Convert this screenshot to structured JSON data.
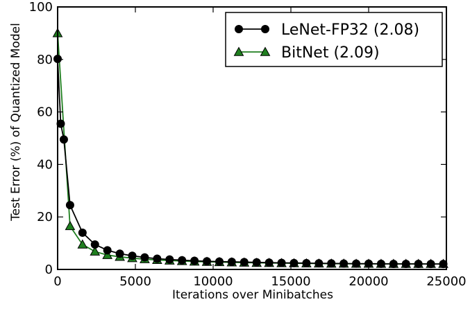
{
  "chart_data": {
    "type": "line",
    "xlabel": "Iterations over Minibatches",
    "ylabel": "Test Error (%) of Quantized Model",
    "xlim": [
      0,
      25000
    ],
    "ylim": [
      0,
      100
    ],
    "xticks": [
      0,
      5000,
      10000,
      15000,
      20000,
      25000
    ],
    "xtick_labels": [
      "0",
      "5000",
      "10000",
      "15000",
      "20000",
      "25000"
    ],
    "yticks": [
      0,
      20,
      40,
      60,
      80,
      100
    ],
    "ytick_labels": [
      "0",
      "20",
      "40",
      "60",
      "80",
      "100"
    ],
    "grid": false,
    "legend_position": "top-right",
    "series": [
      {
        "name": "LeNet-FP32 (2.08)",
        "color": "#000000",
        "marker": "circle",
        "x": [
          0,
          200,
          400,
          800,
          1600,
          2400,
          3200,
          4000,
          4800,
          5600,
          6400,
          7200,
          8000,
          8800,
          9600,
          10400,
          11200,
          12000,
          12800,
          13600,
          14400,
          15200,
          16000,
          16800,
          17600,
          18400,
          19200,
          20000,
          20800,
          21600,
          22400,
          23200,
          24000,
          24800
        ],
        "y": [
          80.2,
          55.5,
          49.5,
          24.5,
          14.0,
          9.5,
          7.3,
          6.0,
          5.2,
          4.6,
          4.1,
          3.8,
          3.5,
          3.3,
          3.1,
          3.0,
          2.9,
          2.8,
          2.7,
          2.6,
          2.5,
          2.45,
          2.4,
          2.35,
          2.3,
          2.25,
          2.2,
          2.2,
          2.15,
          2.12,
          2.1,
          2.1,
          2.08,
          2.08
        ]
      },
      {
        "name": "BitNet (2.09)",
        "color": "#1f7f1f",
        "marker": "triangle",
        "x": [
          0,
          800,
          1600,
          2400,
          3200,
          4000,
          4800,
          5600,
          6400,
          7200,
          8000,
          8800,
          9600,
          10400,
          11200,
          12000,
          12800,
          13600,
          14400,
          15200,
          16000,
          16800,
          17600,
          18400,
          19200,
          20000,
          20800,
          21600,
          22400,
          23200,
          24000,
          24800
        ],
        "y": [
          90.0,
          16.5,
          9.5,
          6.8,
          5.5,
          4.8,
          4.3,
          3.9,
          3.6,
          3.4,
          3.2,
          3.0,
          2.9,
          2.8,
          2.7,
          2.6,
          2.5,
          2.45,
          2.4,
          2.35,
          2.3,
          2.25,
          2.2,
          2.2,
          2.15,
          2.15,
          2.12,
          2.1,
          2.1,
          2.09,
          2.09,
          2.09
        ]
      }
    ]
  }
}
